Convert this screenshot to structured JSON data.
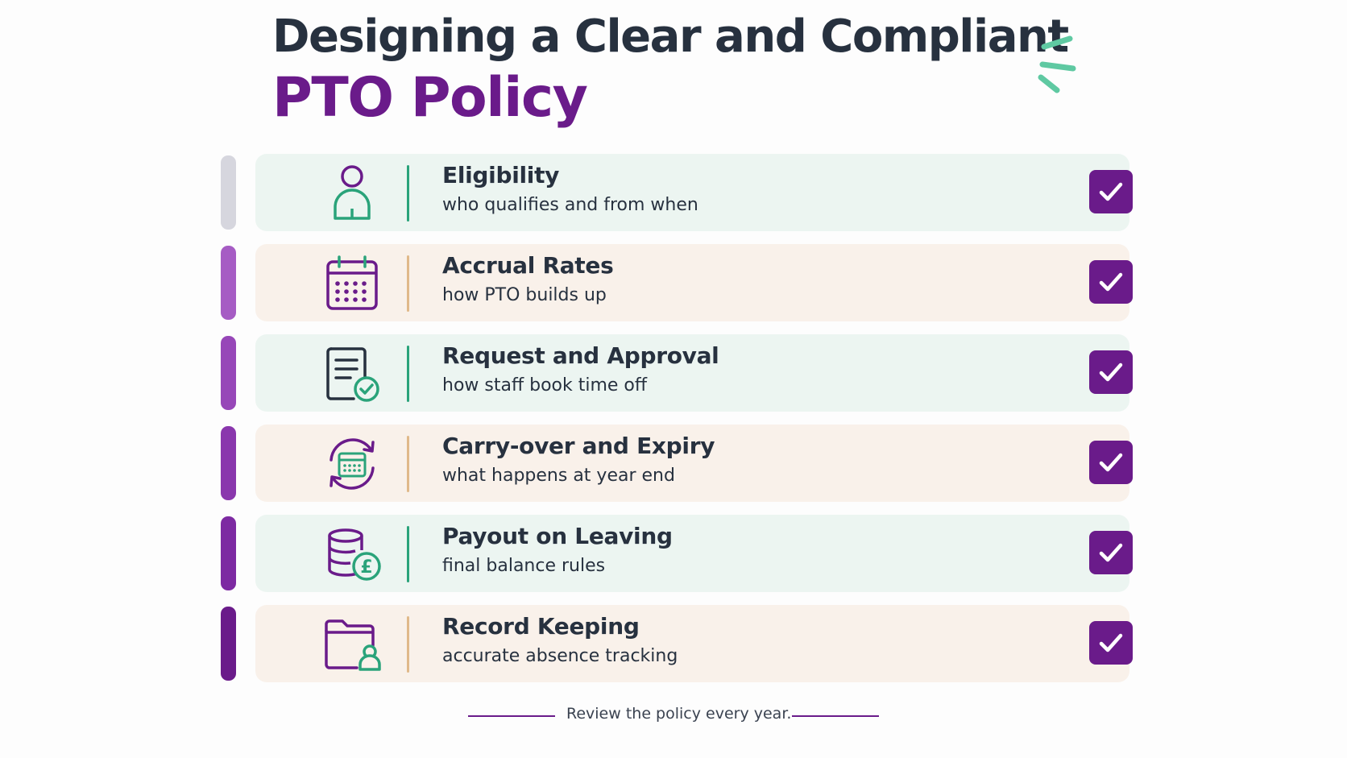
{
  "title": {
    "line1": "Designing a Clear and Compliant",
    "line2": "PTO Policy"
  },
  "colors": {
    "accent_purple": "#6a1b8a",
    "accent_green": "#2aa37a",
    "text_dark": "#27313f",
    "card_mint": "#ecf5f1",
    "card_peach": "#f9f1ea"
  },
  "items": [
    {
      "title": "Eligibility",
      "subtitle": "who qualifies and from when",
      "icon": "person-icon",
      "checked": true
    },
    {
      "title": "Accrual Rates",
      "subtitle": "how PTO builds up",
      "icon": "calendar-icon",
      "checked": true
    },
    {
      "title": "Request and Approval",
      "subtitle": "how staff book time off",
      "icon": "document-check-icon",
      "checked": true
    },
    {
      "title": "Carry-over and Expiry",
      "subtitle": "what happens at year end",
      "icon": "calendar-cycle-icon",
      "checked": true
    },
    {
      "title": "Payout on Leaving",
      "subtitle": "final balance rules",
      "icon": "coins-pound-icon",
      "checked": true
    },
    {
      "title": "Record Keeping",
      "subtitle": "accurate absence tracking",
      "icon": "folder-person-icon",
      "checked": true
    }
  ],
  "footer": {
    "text": "Review the policy every year."
  }
}
